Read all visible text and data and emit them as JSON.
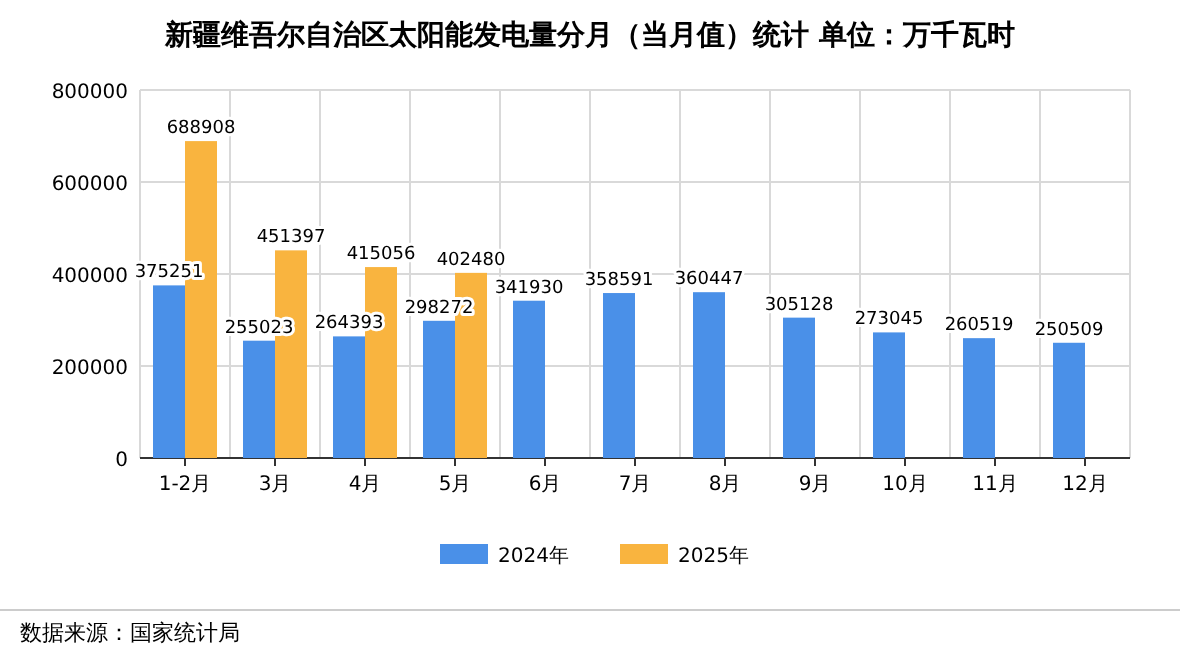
{
  "chart_data": {
    "type": "bar",
    "title": "新疆维吾尔自治区太阳能发电量分月（当月值）统计  单位：万千瓦时",
    "categories": [
      "1-2月",
      "3月",
      "4月",
      "5月",
      "6月",
      "7月",
      "8月",
      "9月",
      "10月",
      "11月",
      "12月"
    ],
    "series": [
      {
        "name": "2024年",
        "color": "#4a90e8",
        "values": [
          375251,
          255023,
          264393,
          298272,
          341930,
          358591,
          360447,
          305128,
          273045,
          260519,
          250509
        ]
      },
      {
        "name": "2025年",
        "color": "#f9b43f",
        "values": [
          688908,
          451397,
          415056,
          402480,
          null,
          null,
          null,
          null,
          null,
          null,
          null
        ]
      }
    ],
    "ylim": [
      0,
      800000
    ],
    "yticks": [
      0,
      200000,
      400000,
      600000,
      800000
    ],
    "grid": true,
    "legend": "bottom",
    "data_labels": true,
    "annotations": [
      "数据来源：国家统计局"
    ]
  }
}
